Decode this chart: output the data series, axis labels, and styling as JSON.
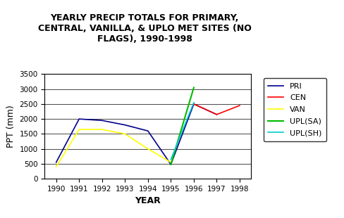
{
  "title": "YEARLY PRECIP TOTALS FOR PRIMARY,\nCENTRAL, VANILLA, & UPLO MET SITES (NO\nFLAGS), 1990-1998",
  "xlabel": "YEAR",
  "ylabel": "PPT (mm)",
  "years_PRI": [
    1990,
    1991,
    1992,
    1993,
    1994,
    1995,
    1996,
    1997
  ],
  "values_PRI": [
    550,
    2000,
    1950,
    1800,
    1600,
    480,
    2500,
    2150
  ],
  "years_CEN": [
    1996,
    1997,
    1998
  ],
  "values_CEN": [
    2500,
    2150,
    2450
  ],
  "years_VAN": [
    1990,
    1991,
    1992,
    1993,
    1994,
    1995
  ],
  "values_VAN": [
    400,
    1650,
    1650,
    1500,
    1000,
    550
  ],
  "years_UPLSA": [
    1995,
    1996
  ],
  "values_UPLSA": [
    480,
    3050
  ],
  "years_UPLSH": [
    1995,
    1996
  ],
  "values_UPLSH": [
    650,
    2550
  ],
  "color_PRI": "#00008B",
  "color_CEN": "#FF0000",
  "color_VAN": "#FFFF00",
  "color_UPLSA": "#00BB00",
  "color_UPLSH": "#00CCCC",
  "ylim": [
    0,
    3500
  ],
  "yticks": [
    0,
    500,
    1000,
    1500,
    2000,
    2500,
    3000,
    3500
  ],
  "xticks": [
    1990,
    1991,
    1992,
    1993,
    1994,
    1995,
    1996,
    1997,
    1998
  ],
  "legend_labels": [
    "PRI",
    "CEN",
    "VAN",
    "UPL(SA)",
    "UPL(SH)"
  ],
  "title_fontsize": 9,
  "axis_label_fontsize": 9,
  "tick_fontsize": 7.5,
  "legend_fontsize": 8,
  "background_color": "#FFFFFF"
}
